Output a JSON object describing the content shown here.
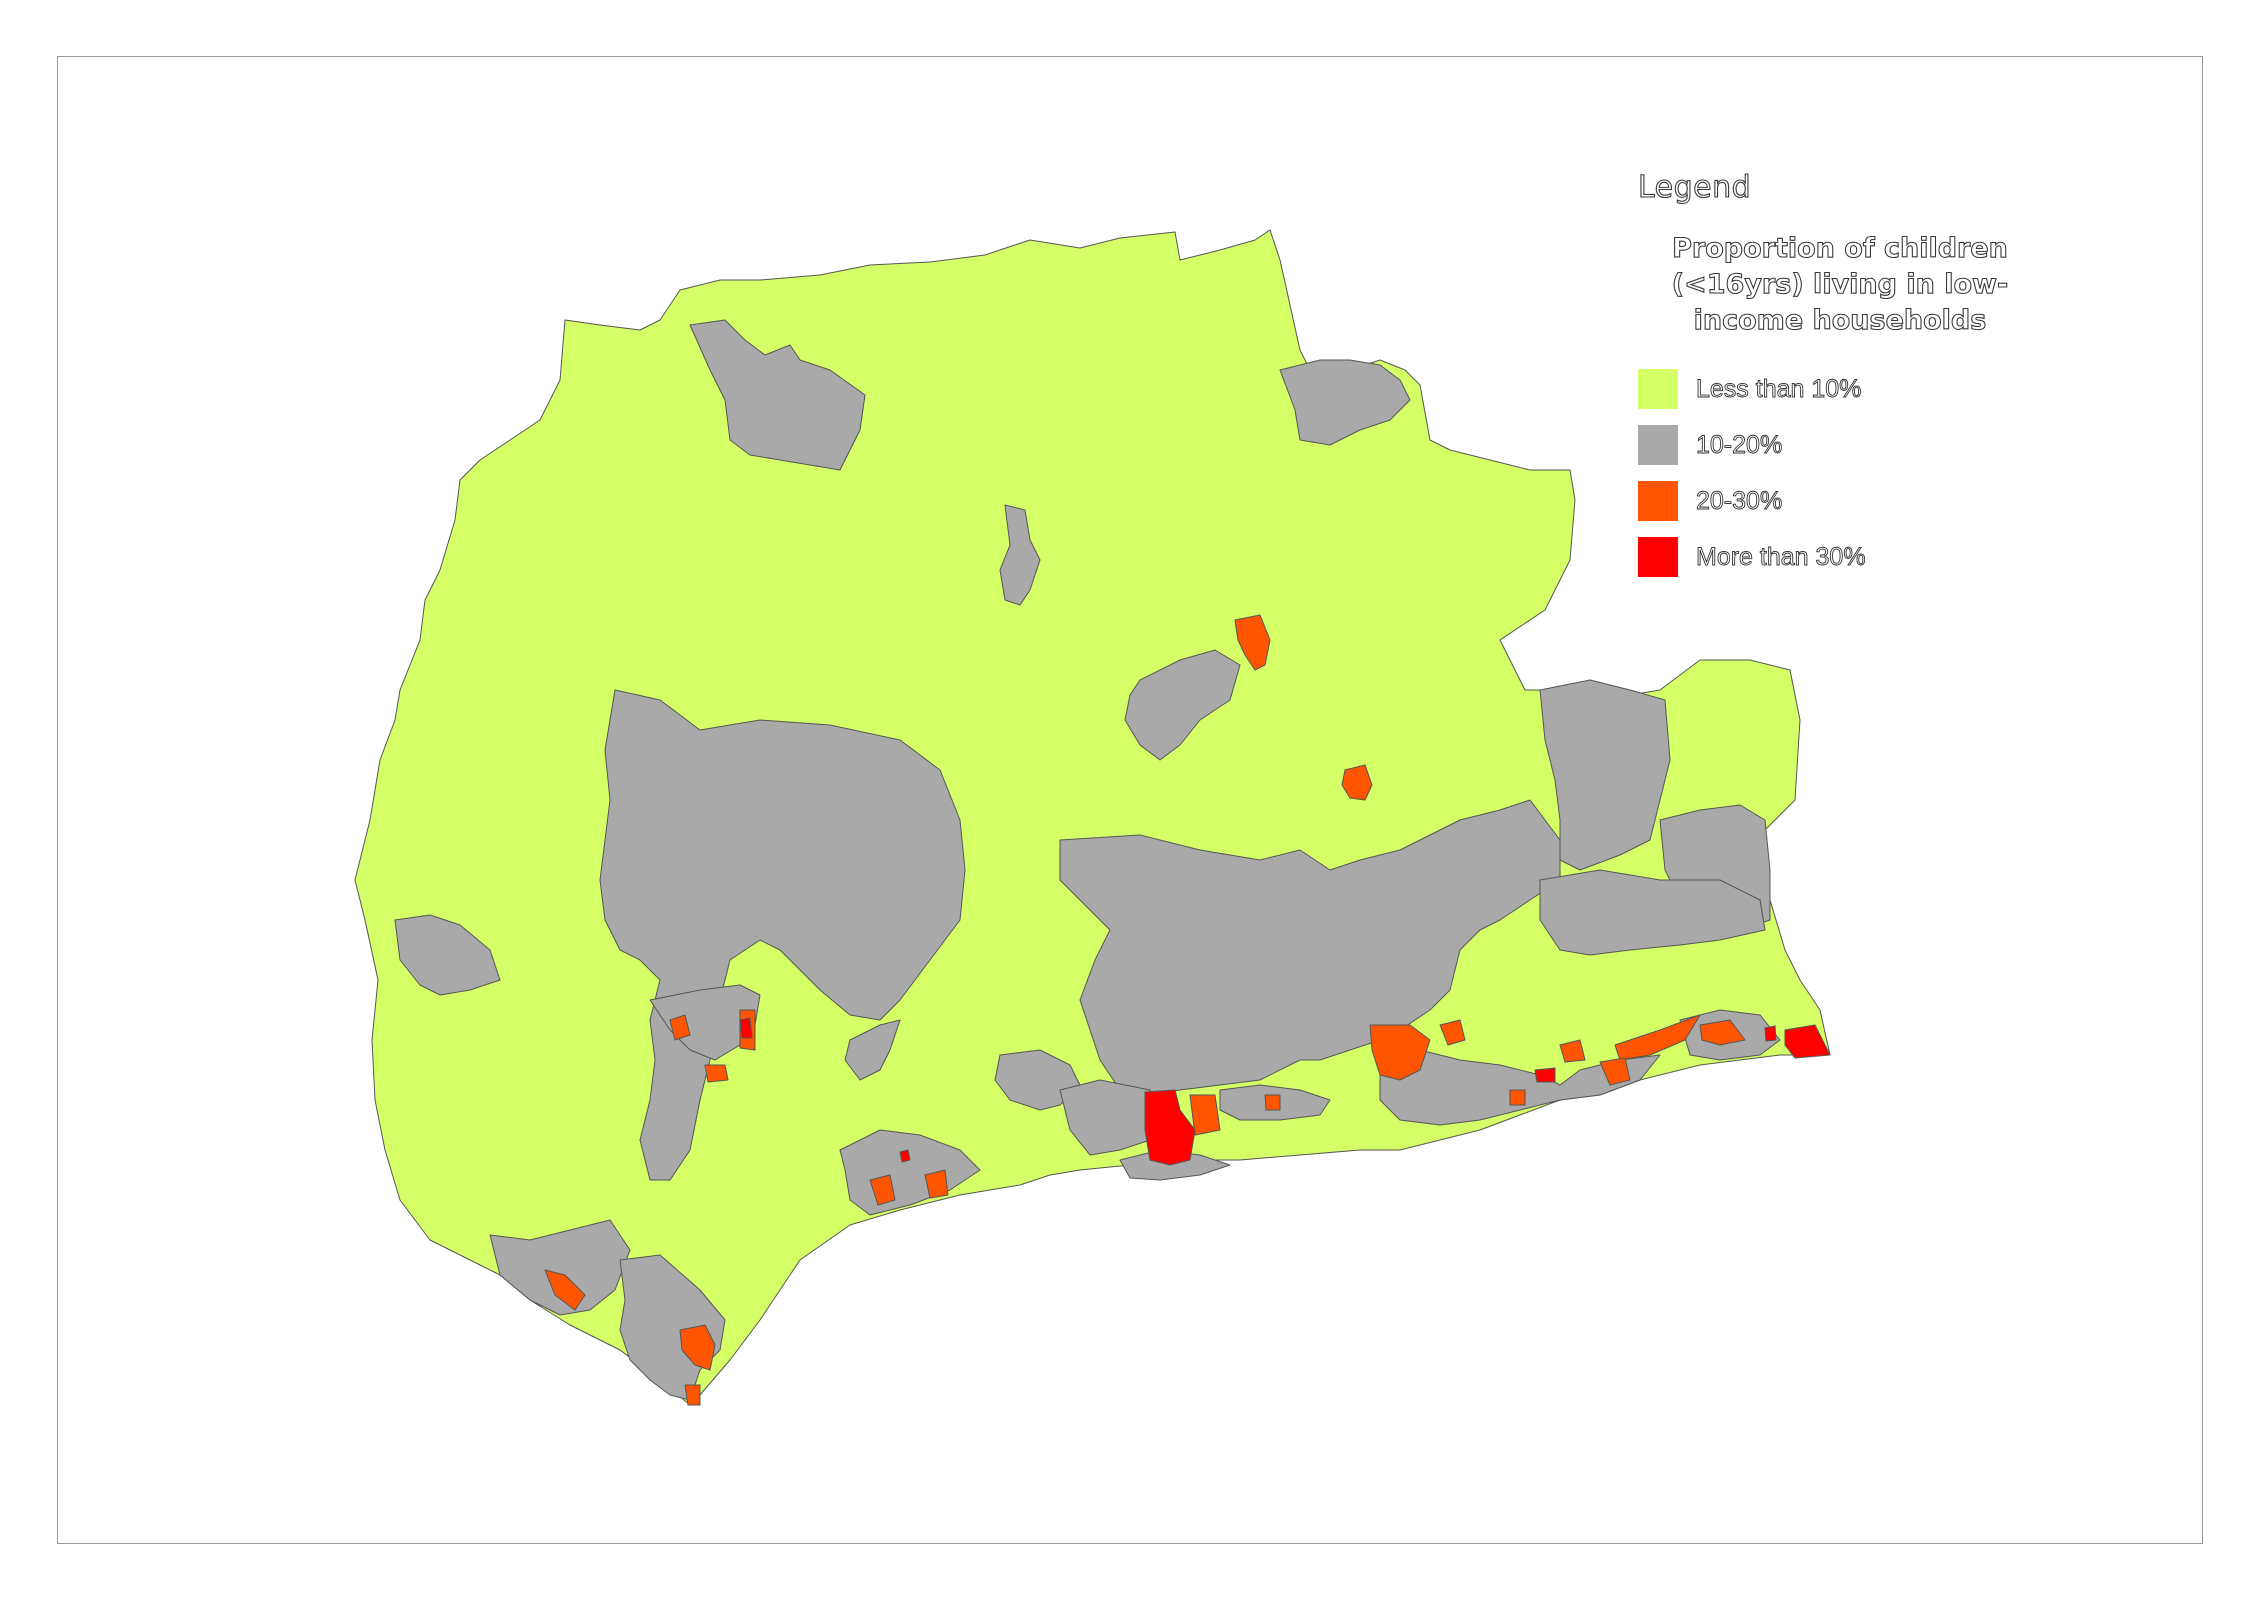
{
  "legend": {
    "title": "Legend",
    "subtitle": "Proportion of children (<16yrs) living in low-income households",
    "categories": [
      {
        "key": "lt10",
        "label": "Less than 10%",
        "color": "#d4ff66"
      },
      {
        "key": "c10_20",
        "label": "10-20%",
        "color": "#a9a9a9"
      },
      {
        "key": "c20_30",
        "label": "20-30%",
        "color": "#ff5500"
      },
      {
        "key": "gt30",
        "label": "More than 30%",
        "color": "#ff0000"
      }
    ]
  },
  "map": {
    "boundary_color": "#555555"
  }
}
